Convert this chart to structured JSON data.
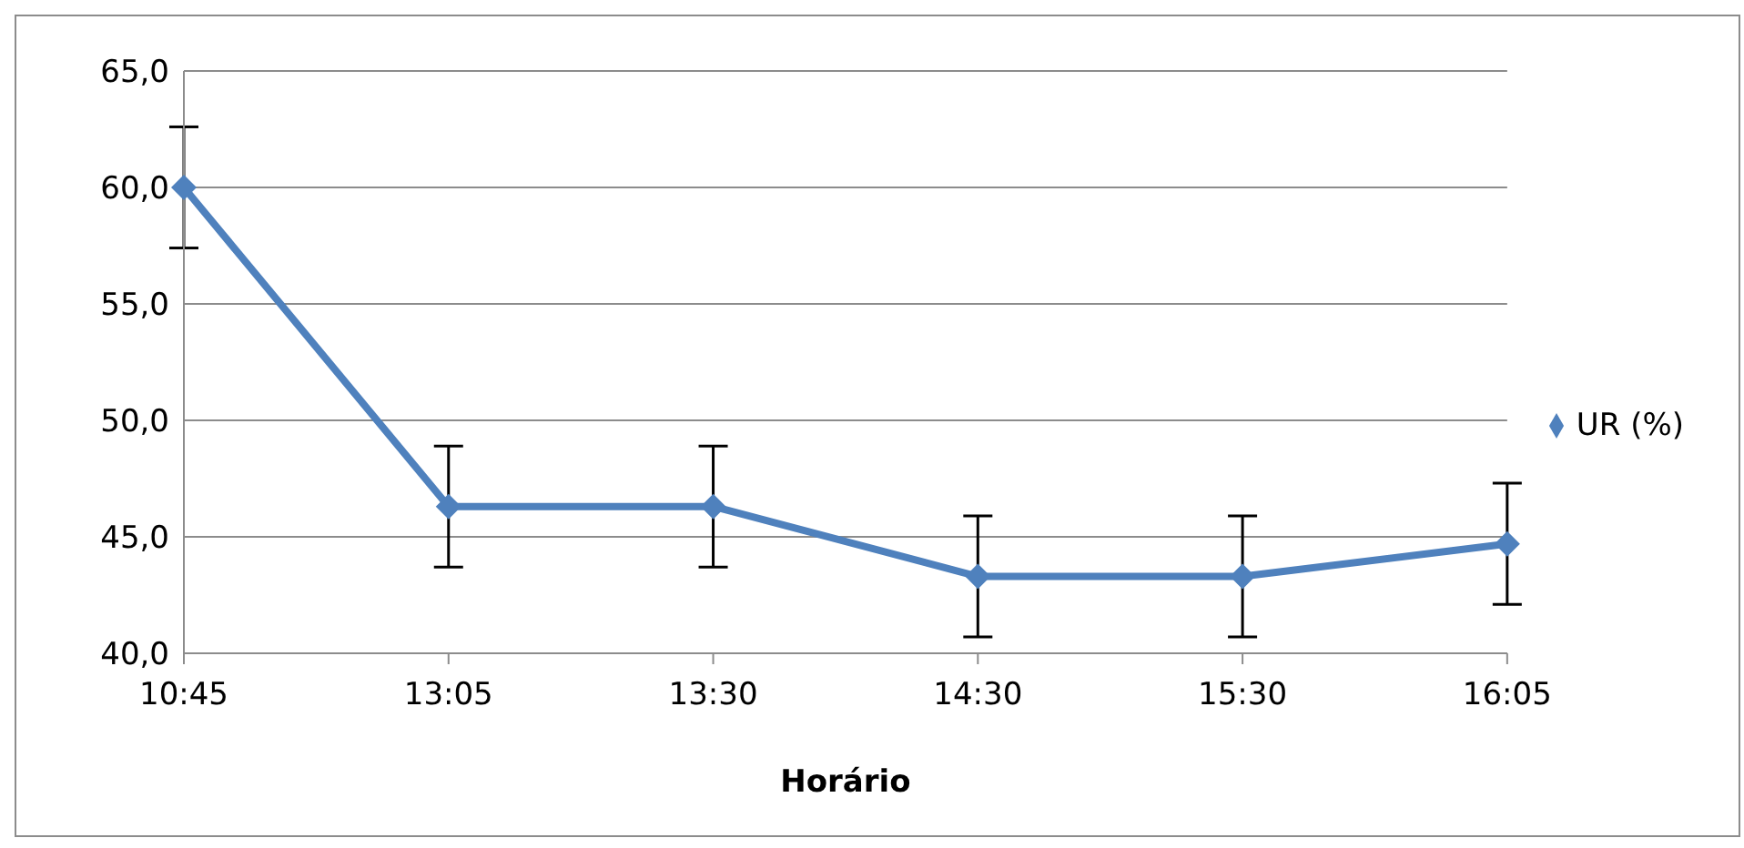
{
  "chart_data": {
    "type": "line",
    "xlabel": "Horário",
    "categories": [
      "10:45",
      "13:05",
      "13:30",
      "14:30",
      "15:30",
      "16:05"
    ],
    "series": [
      {
        "name": "UR (%)",
        "color": "#4f81bd",
        "values": [
          60.0,
          46.3,
          46.3,
          43.3,
          43.3,
          44.7
        ],
        "errors": [
          2.6,
          2.6,
          2.6,
          2.6,
          2.6,
          2.6
        ]
      }
    ],
    "ylim": [
      40,
      65
    ],
    "yticks": [
      {
        "value": 40,
        "label": "40,0"
      },
      {
        "value": 45,
        "label": "45,0"
      },
      {
        "value": 50,
        "label": "50,0"
      },
      {
        "value": 55,
        "label": "55,0"
      },
      {
        "value": 60,
        "label": "60,0"
      },
      {
        "value": 65,
        "label": "65,0"
      }
    ],
    "grid": "y",
    "legend": "right",
    "marker": "diamond",
    "line_style": "solid"
  }
}
